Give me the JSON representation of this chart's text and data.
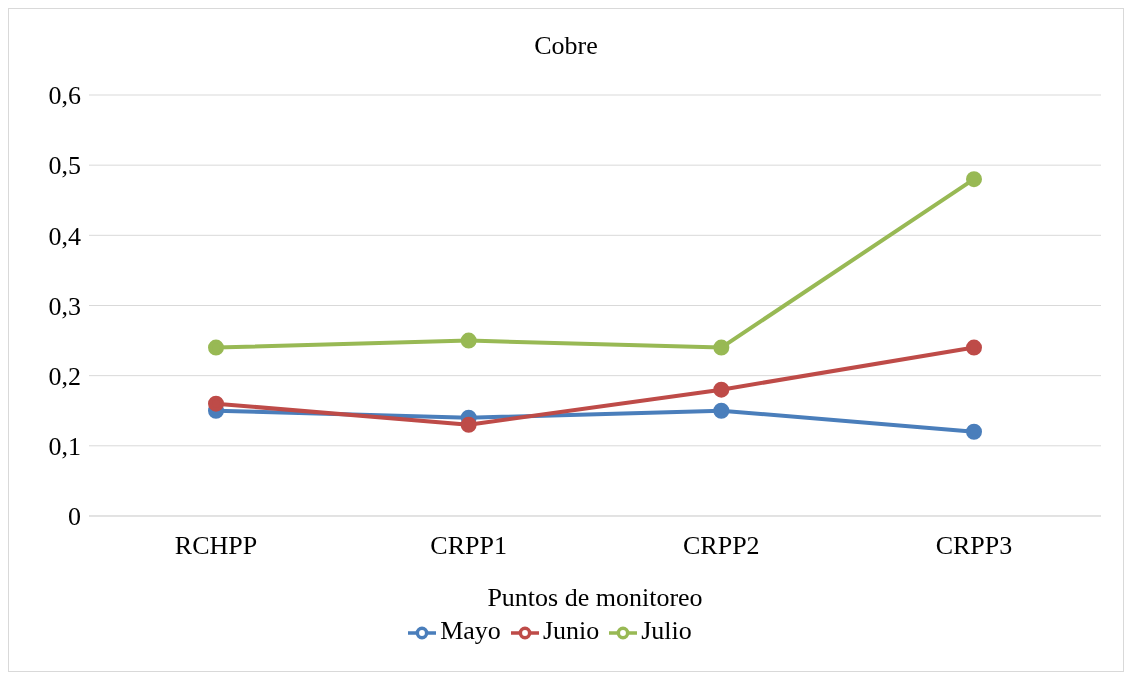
{
  "chart_data": {
    "type": "line",
    "title": "Cobre",
    "xlabel": "Puntos de monitoreo",
    "categories": [
      "RCHPP",
      "CRPP1",
      "CRPP2",
      "CRPP3"
    ],
    "series": [
      {
        "name": "Mayo",
        "color": "#4a7ebb",
        "values": [
          0.15,
          0.14,
          0.15,
          0.12
        ]
      },
      {
        "name": "Junio",
        "color": "#be4b48",
        "values": [
          0.16,
          0.13,
          0.18,
          0.24
        ]
      },
      {
        "name": "Julio",
        "color": "#98b954",
        "values": [
          0.24,
          0.25,
          0.24,
          0.48
        ]
      }
    ],
    "ylim": [
      0,
      0.6
    ],
    "yticks": [
      0,
      {
        "value": 0.1,
        "label": "0,1"
      },
      {
        "value": 0.2,
        "label": "0,2"
      },
      {
        "value": 0.3,
        "label": "0,3"
      },
      {
        "value": 0.4,
        "label": "0,4"
      },
      {
        "value": 0.5,
        "label": "0,5"
      },
      {
        "value": 0.6,
        "label": "0,6"
      }
    ],
    "grid": "y",
    "legend": "bottom",
    "marker": "circle",
    "line_style": "solid"
  }
}
